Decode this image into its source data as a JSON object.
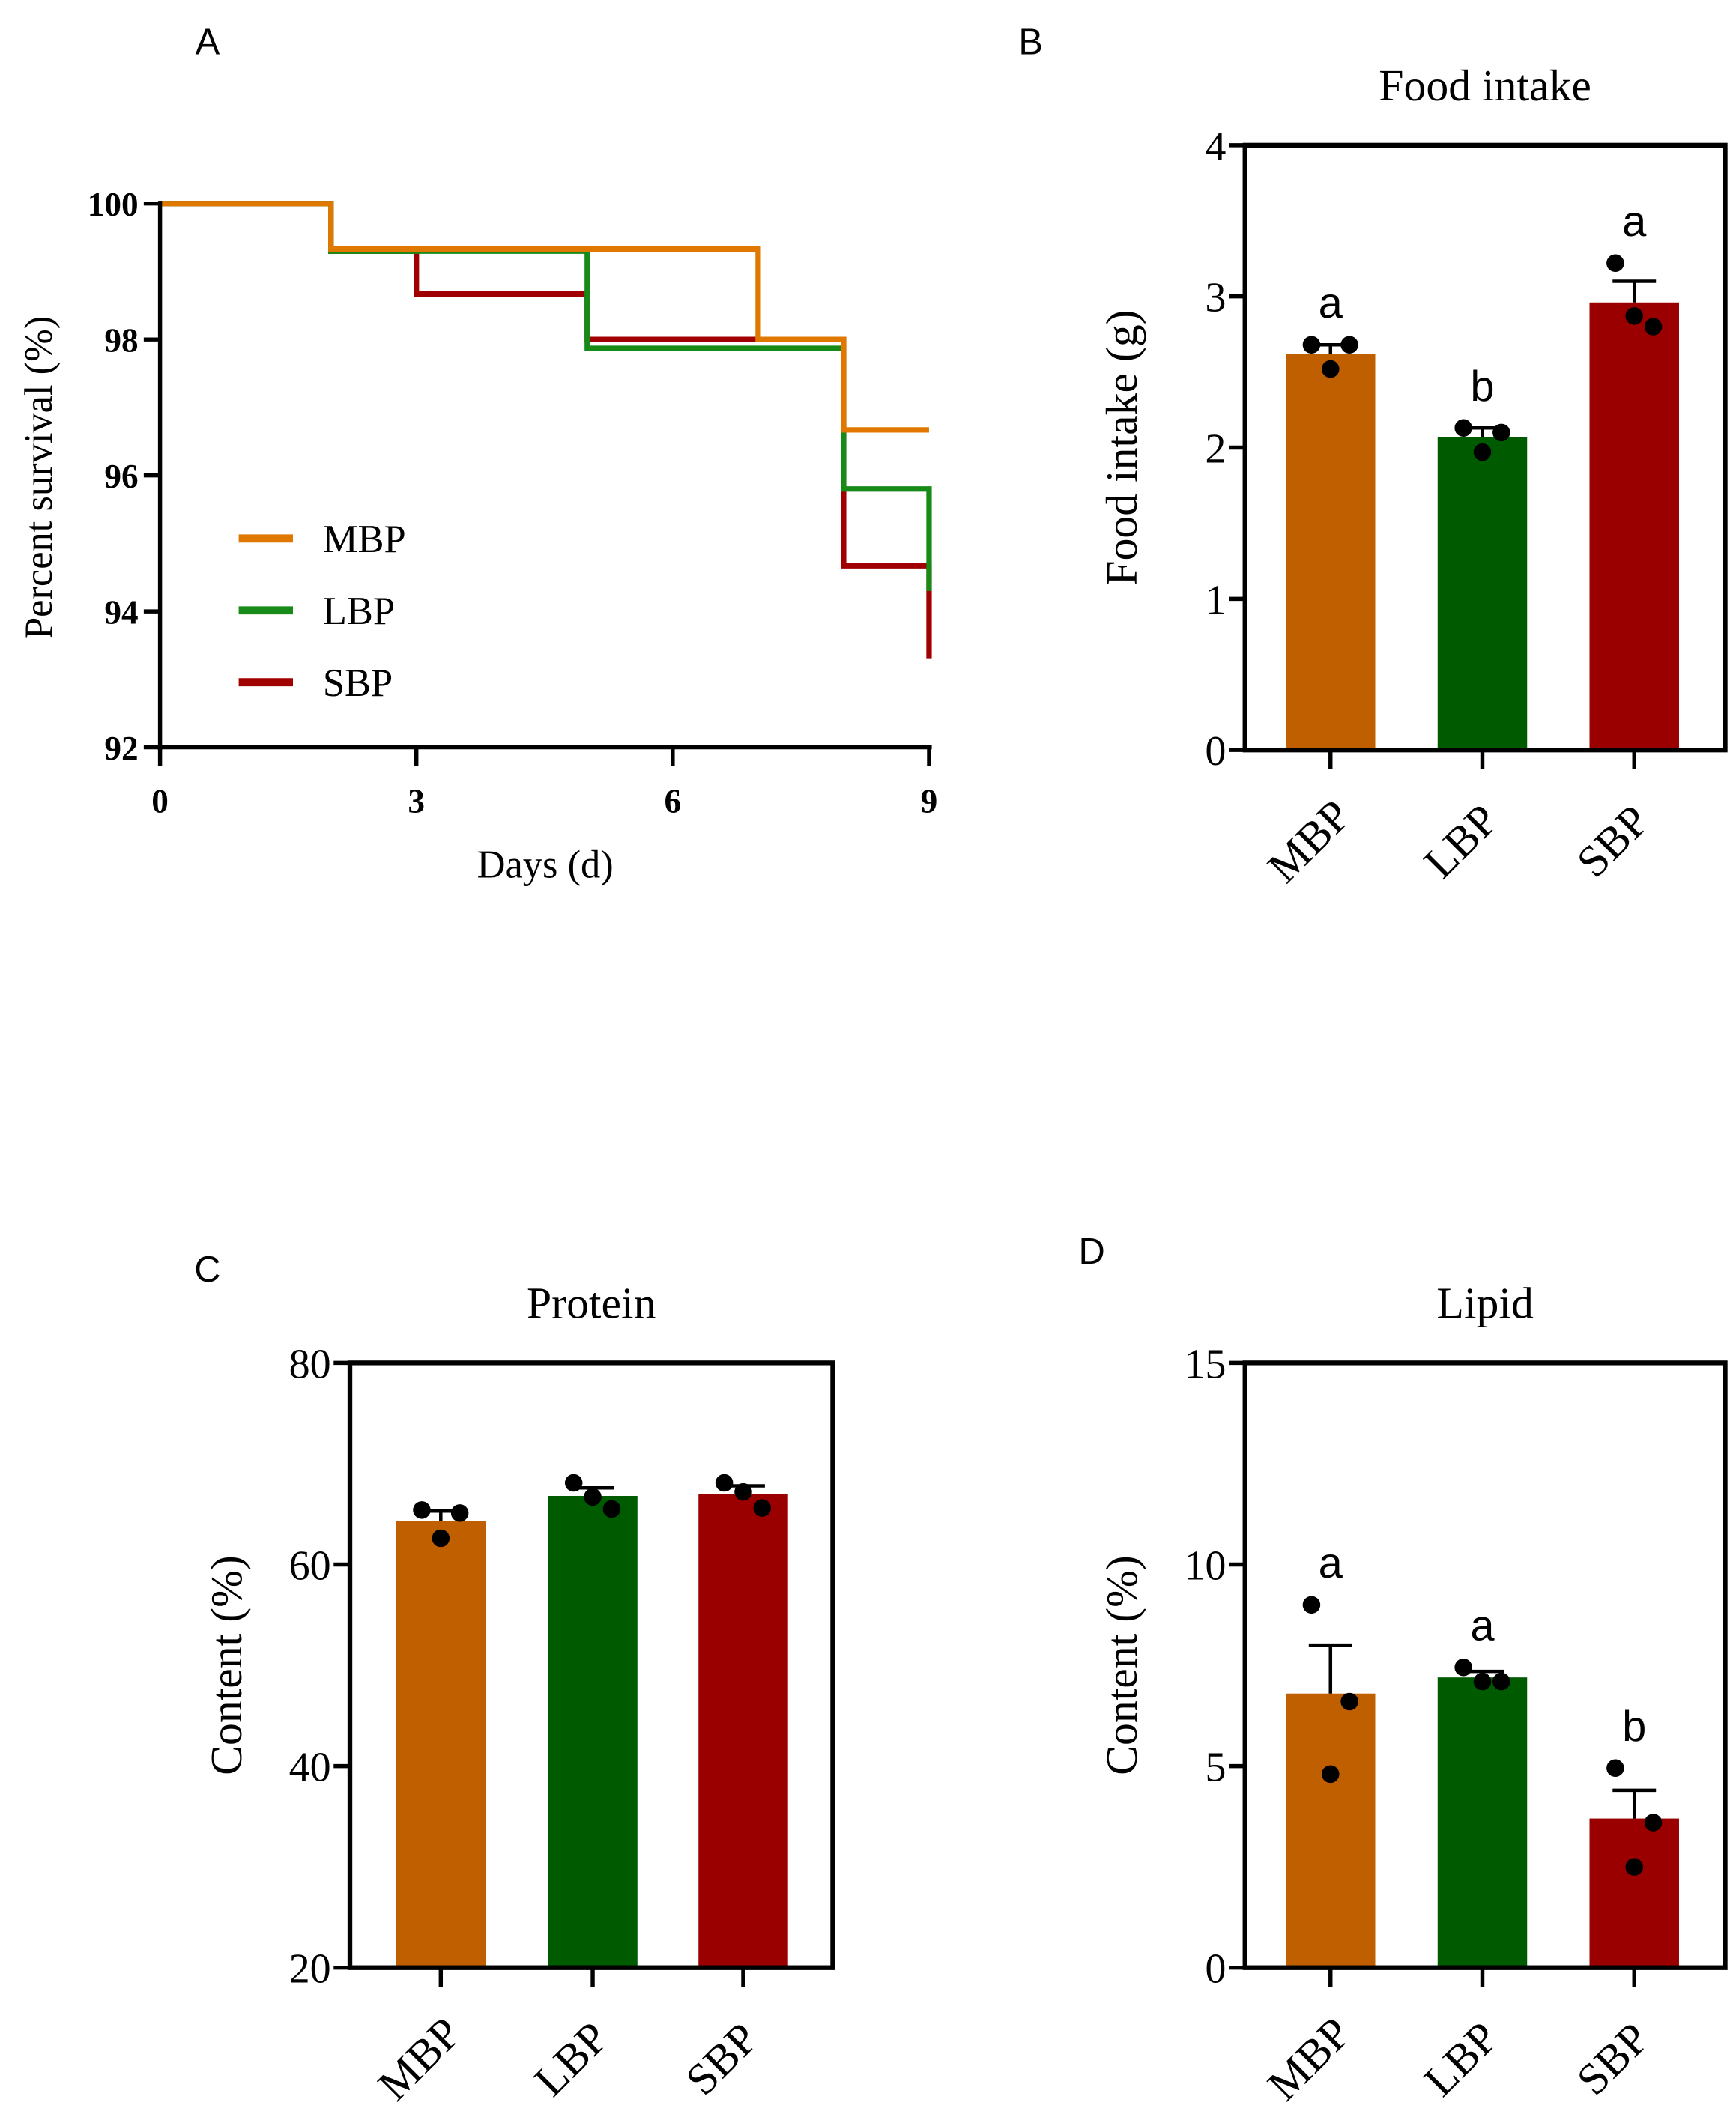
{
  "colors": {
    "MBP_line": "#E07800",
    "LBP_line": "#178A17",
    "SBP_line": "#A00000",
    "MBP_bar": "#C05F00",
    "LBP_bar": "#005A00",
    "SBP_bar": "#9B0000"
  },
  "chart_data": [
    {
      "panel": "A",
      "type": "line",
      "title": "",
      "xlabel": "Days (d)",
      "ylabel": "Percent survival (%)",
      "xlim": [
        0,
        9
      ],
      "ylim": [
        92,
        100
      ],
      "xticks": [
        "0",
        "3",
        "6",
        "9"
      ],
      "yticks": [
        "92",
        "94",
        "96",
        "98",
        "100"
      ],
      "legend_position": "bottom-left",
      "series": [
        {
          "name": "MBP",
          "steps": [
            [
              0,
              100
            ],
            [
              2,
              99.33
            ],
            [
              7,
              98.0
            ],
            [
              8,
              96.67
            ],
            [
              9,
              96.67
            ]
          ]
        },
        {
          "name": "LBP",
          "steps": [
            [
              0,
              100
            ],
            [
              2,
              99.3
            ],
            [
              5,
              97.87
            ],
            [
              8,
              95.8
            ],
            [
              9,
              94.3
            ]
          ]
        },
        {
          "name": "SBP",
          "steps": [
            [
              0,
              100
            ],
            [
              2,
              99.3
            ],
            [
              3,
              98.67
            ],
            [
              5,
              98.0
            ],
            [
              8,
              94.67
            ],
            [
              9,
              93.3
            ]
          ]
        }
      ]
    },
    {
      "panel": "B",
      "type": "bar",
      "title": "Food intake",
      "ylabel": "Food intake (g)",
      "ylim": [
        0,
        4
      ],
      "yticks": [
        "0",
        "1",
        "2",
        "3",
        "4"
      ],
      "categories": [
        "MBP",
        "LBP",
        "SBP"
      ],
      "values": [
        2.62,
        2.07,
        2.96
      ],
      "error_upper": [
        2.68,
        2.13,
        3.1
      ],
      "points": [
        [
          2.68,
          2.68,
          2.52
        ],
        [
          2.13,
          2.1,
          1.97
        ],
        [
          3.22,
          2.8,
          2.87
        ]
      ],
      "letters": [
        "a",
        "b",
        "a"
      ]
    },
    {
      "panel": "C",
      "type": "bar",
      "title": "Protein",
      "ylabel": "Content (%)",
      "ylim": [
        20,
        80
      ],
      "yticks": [
        "20",
        "40",
        "60",
        "80"
      ],
      "categories": [
        "MBP",
        "LBP",
        "SBP"
      ],
      "values": [
        64.3,
        66.8,
        67.0
      ],
      "error_upper": [
        65.3,
        67.6,
        67.8
      ],
      "points": [
        [
          65.4,
          65.1,
          62.6
        ],
        [
          68.1,
          65.5,
          66.7
        ],
        [
          68.1,
          65.6,
          67.2
        ]
      ],
      "letters": [
        "",
        "",
        ""
      ]
    },
    {
      "panel": "D",
      "type": "bar",
      "title": "Lipid",
      "ylabel": "Content (%)",
      "ylim": [
        0,
        15
      ],
      "yticks": [
        "0",
        "5",
        "10",
        "15"
      ],
      "categories": [
        "MBP",
        "LBP",
        "SBP"
      ],
      "values": [
        6.8,
        7.2,
        3.7
      ],
      "error_upper": [
        8.0,
        7.35,
        4.4
      ],
      "points": [
        [
          9.0,
          6.6,
          4.8
        ],
        [
          7.45,
          7.1,
          7.1
        ],
        [
          4.95,
          3.6,
          2.5
        ]
      ],
      "letters": [
        "a",
        "a",
        "b"
      ]
    }
  ]
}
